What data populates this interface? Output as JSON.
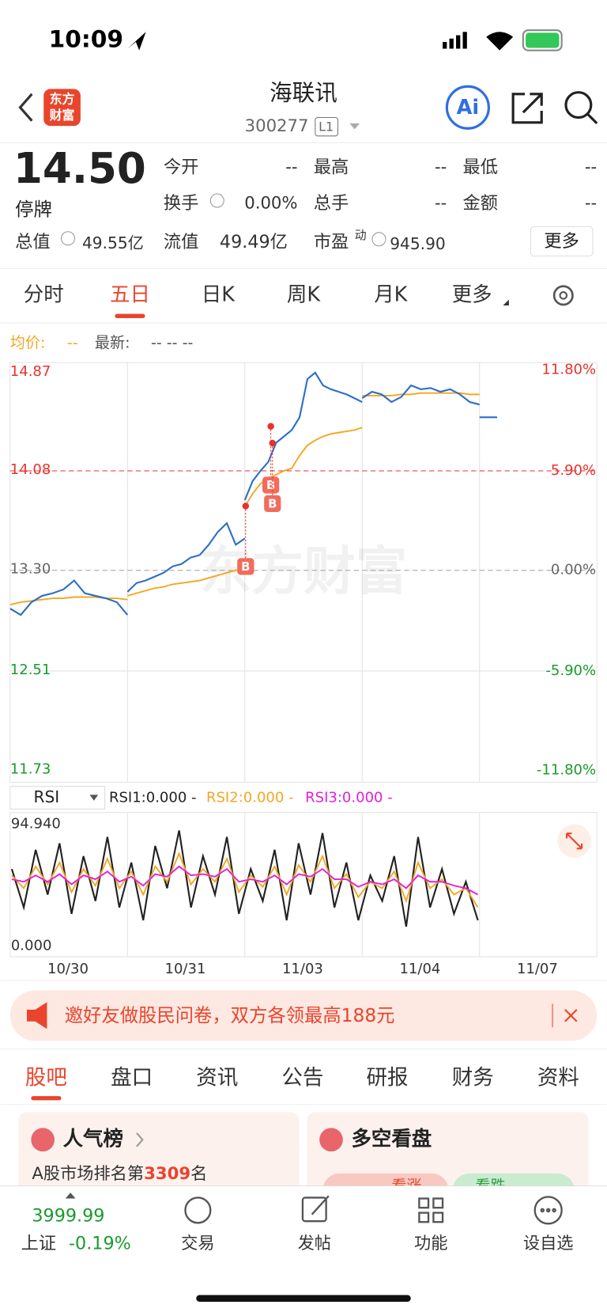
{
  "status_bar": {
    "time": "10:09"
  },
  "header": {
    "logo": [
      "东方",
      "财富"
    ],
    "name": "海联讯",
    "code": "300277",
    "level": "L1",
    "ai": "Ai"
  },
  "quote": {
    "price": "14.50",
    "status": "停牌",
    "more": "更多",
    "fields": [
      {
        "label": "今开",
        "value": "--"
      },
      {
        "label": "最高",
        "value": "--"
      },
      {
        "label": "最低",
        "value": "--"
      },
      {
        "label": "换手",
        "value": "0.00%"
      },
      {
        "label": "总手",
        "value": "--"
      },
      {
        "label": "金额",
        "value": "--"
      }
    ],
    "total_value": {
      "label": "总值",
      "value": "49.55亿"
    },
    "float_value": {
      "label": "流值",
      "value": "49.49亿"
    },
    "pe": {
      "label": "市盈",
      "sup": "动",
      "value": "945.90"
    }
  },
  "tabs": {
    "items": [
      "分时",
      "五日",
      "日K",
      "周K",
      "月K",
      "更多"
    ],
    "active": 1
  },
  "legend": {
    "avg_label": "均价:",
    "avg_value": "--",
    "latest_label": "最新:",
    "latest_value": "-- -- --"
  },
  "chart": {
    "watermark": "东方财富",
    "ylim": [
      11.73,
      14.87
    ],
    "yticks": [
      14.87,
      14.08,
      {
        "value": 13.3,
        "label": "13.30"
      },
      12.51,
      11.73
    ],
    "y2lim": [
      -11.8,
      11.8
    ],
    "y2ticks": [
      {
        "value": 11.8,
        "label": "11.80%"
      },
      {
        "value": 5.9,
        "label": "5.90%"
      },
      {
        "value": 0,
        "label": "0.00%"
      },
      {
        "value": -5.9,
        "label": "-5.90%"
      },
      {
        "value": -11.8,
        "label": "-11.80%"
      }
    ],
    "price_color": "#2e6fc4",
    "avg_color": "#f5a623",
    "days": [
      {
        "date": "10/30",
        "price": [
          13.0,
          12.95,
          13.05,
          13.1,
          13.12,
          13.15,
          13.22,
          13.12,
          13.1,
          13.08,
          13.05,
          12.95
        ],
        "avg": [
          13.03,
          13.05,
          13.06,
          13.07,
          13.08,
          13.08,
          13.09,
          13.09,
          13.09,
          13.08,
          13.08,
          13.07
        ]
      },
      {
        "date": "10/31",
        "price": [
          13.13,
          13.2,
          13.22,
          13.25,
          13.28,
          13.33,
          13.35,
          13.4,
          13.42,
          13.5,
          13.6,
          13.67,
          13.5,
          13.55
        ],
        "avg": [
          13.1,
          13.12,
          13.14,
          13.16,
          13.17,
          13.19,
          13.2,
          13.21,
          13.22,
          13.24,
          13.26,
          13.28,
          13.3,
          13.31
        ]
      },
      {
        "date": "11/03",
        "price": [
          13.85,
          14.0,
          14.08,
          14.15,
          14.3,
          14.35,
          14.4,
          14.5,
          14.8,
          14.85,
          14.75,
          14.72,
          14.7,
          14.68,
          14.65,
          14.62
        ],
        "avg": [
          13.8,
          13.9,
          13.98,
          14.02,
          14.05,
          14.08,
          14.1,
          14.2,
          14.28,
          14.32,
          14.35,
          14.37,
          14.38,
          14.39,
          14.4,
          14.42
        ]
      },
      {
        "date": "11/04",
        "price": [
          14.65,
          14.7,
          14.68,
          14.62,
          14.66,
          14.75,
          14.72,
          14.73,
          14.7,
          14.72,
          14.68,
          14.62,
          14.6
        ],
        "avg": [
          14.67,
          14.67,
          14.67,
          14.67,
          14.68,
          14.68,
          14.69,
          14.69,
          14.69,
          14.69,
          14.69,
          14.68,
          14.68
        ]
      },
      {
        "date": "11/07",
        "price": [
          14.5,
          14.5
        ],
        "avg": []
      }
    ],
    "trade_markers": [
      "B",
      "B",
      "B"
    ]
  },
  "rsi": {
    "name": "RSI",
    "ylim": [
      0,
      94.94
    ],
    "yticks": [
      {
        "value": 94.94,
        "label": "94.940"
      },
      {
        "value": 0,
        "label": "0.000"
      }
    ],
    "series": [
      {
        "name": "RSI1:0.000 -",
        "color": "#222222",
        "values": [
          60,
          30,
          75,
          40,
          80,
          25,
          70,
          35,
          85,
          30,
          65,
          20,
          78,
          45,
          90,
          30,
          70,
          40,
          85,
          25,
          60,
          35,
          75,
          20,
          80,
          40,
          88,
          30,
          65,
          20,
          55,
          35,
          70,
          15,
          85,
          30,
          60,
          25,
          50,
          20
        ]
      },
      {
        "name": "RSI2:0.000 -",
        "color": "#f5a623",
        "values": [
          55,
          45,
          62,
          48,
          65,
          42,
          60,
          47,
          68,
          45,
          58,
          40,
          62,
          50,
          72,
          48,
          60,
          50,
          68,
          42,
          55,
          46,
          62,
          40,
          63,
          50,
          70,
          45,
          56,
          38,
          50,
          45,
          58,
          35,
          65,
          45,
          52,
          40,
          45,
          30
        ]
      },
      {
        "name": "RSI3:0.000 -",
        "color": "#e020d8",
        "values": [
          52,
          50,
          55,
          50,
          56,
          48,
          55,
          52,
          58,
          50,
          54,
          47,
          56,
          54,
          62,
          55,
          56,
          54,
          60,
          50,
          52,
          50,
          55,
          48,
          56,
          54,
          60,
          52,
          52,
          46,
          50,
          48,
          52,
          45,
          55,
          50,
          50,
          47,
          45,
          40
        ]
      }
    ]
  },
  "banner": {
    "text": "邀好友做股民问卷，双方各领最高188元"
  },
  "sub_tabs": {
    "items": [
      "股吧",
      "盘口",
      "资讯",
      "公告",
      "研报",
      "财务",
      "资料"
    ],
    "active": 0
  },
  "cards": {
    "popularity": {
      "title": "人气榜",
      "prefix": "A股市场排名第",
      "rank": "3309",
      "suffix": "名"
    },
    "sentiment": {
      "title": "多空看盘",
      "up": "看涨",
      "down": "看跌"
    }
  },
  "nav": {
    "index_value": "3999.99",
    "index_name": "上证",
    "index_change": "-0.19%",
    "items": [
      "交易",
      "发帖",
      "功能",
      "设自选"
    ]
  }
}
